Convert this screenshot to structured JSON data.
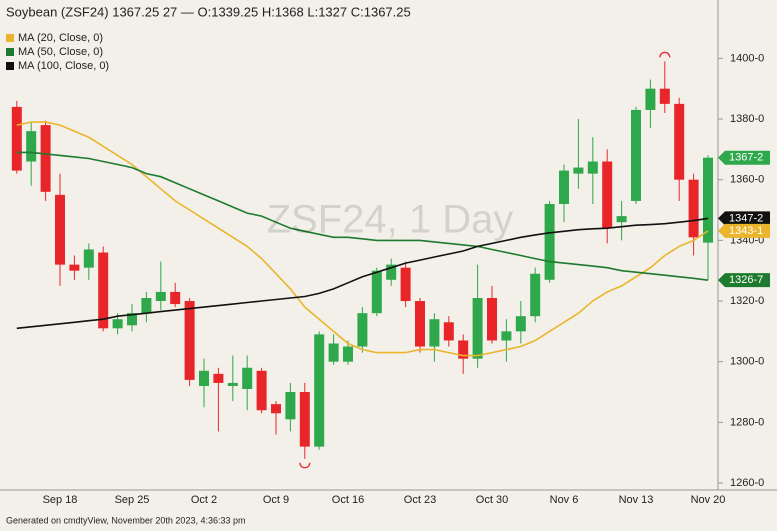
{
  "chart_data": {
    "type": "candlestick",
    "title": "Soybean (ZSF24) 1367.25 27 — O:1339.25 H:1368 L:1327 C:1367.25",
    "watermark": "ZSF24, 1 Day",
    "footer": "Generated on cmdtyView, November 20th 2023, 4:36:33 pm",
    "up_color": "#2ea84a",
    "down_color": "#e8262a",
    "categories": [
      null,
      null,
      null,
      "Sep 18",
      null,
      null,
      null,
      null,
      "Sep 25",
      null,
      null,
      null,
      null,
      "Oct 2",
      null,
      null,
      null,
      null,
      "Oct 9",
      null,
      null,
      null,
      null,
      "Oct 16",
      null,
      null,
      null,
      null,
      "Oct 23",
      null,
      null,
      null,
      null,
      "Oct 30",
      null,
      null,
      null,
      null,
      "Nov 6",
      null,
      null,
      null,
      null,
      "Nov 13",
      null,
      null,
      null,
      null,
      "Nov 20"
    ],
    "open": [
      1384,
      1366,
      1378,
      1355,
      1332,
      1331,
      1336,
      1311,
      1312,
      1316,
      1320,
      1323,
      1320,
      1292,
      1296,
      1292,
      1291,
      1297,
      1286,
      1281,
      1290,
      1272,
      1300,
      1300,
      1305,
      1316,
      1327,
      1331,
      1320,
      1305,
      1313,
      1307,
      1301,
      1321,
      1307,
      1310,
      1315,
      1327,
      1352,
      1362,
      1362,
      1366,
      1346,
      1353,
      1383,
      1390,
      1385,
      1360,
      1339.25
    ],
    "high": [
      1386,
      1379,
      1379.5,
      1362,
      1335,
      1339,
      1338,
      1316,
      1319,
      1323,
      1333,
      1326,
      1321,
      1301,
      1298,
      1302,
      1302,
      1298,
      1287,
      1293,
      1293,
      1310,
      1309,
      1307,
      1318,
      1331,
      1334,
      1333,
      1321,
      1316,
      1315,
      1309,
      1332,
      1325,
      1314,
      1320,
      1331,
      1353,
      1365,
      1380,
      1374,
      1370,
      1353,
      1384,
      1393,
      1399,
      1387,
      1362,
      1368
    ],
    "low": [
      1362,
      1358,
      1353,
      1325,
      1327,
      1327,
      1310,
      1309,
      1310,
      1313,
      1317,
      1318,
      1292,
      1285,
      1277,
      1287,
      1284,
      1283,
      1276,
      1277,
      1268,
      1271,
      1299,
      1299,
      1303,
      1315,
      1325,
      1318,
      1303,
      1300,
      1305,
      1296,
      1298,
      1306,
      1300,
      1306,
      1313,
      1326,
      1346,
      1357,
      1352,
      1339,
      1340,
      1352,
      1377,
      1382,
      1353,
      1335,
      1327
    ],
    "close": [
      1363,
      1376,
      1356,
      1332,
      1330,
      1337,
      1311,
      1314,
      1316,
      1321,
      1323,
      1319,
      1294,
      1297,
      1293,
      1293,
      1298,
      1284,
      1283,
      1290,
      1272,
      1309,
      1306,
      1305,
      1316,
      1330,
      1332,
      1320,
      1305,
      1314,
      1307,
      1301,
      1321,
      1307,
      1310,
      1315,
      1329,
      1352,
      1363,
      1364,
      1366,
      1344,
      1348,
      1383,
      1390,
      1385,
      1360,
      1341,
      1367.25
    ],
    "series": [
      {
        "name": "MA (20, Close, 0)",
        "color": "#eab52a",
        "values": [
          1378,
          1379,
          1379,
          1378,
          1376,
          1374,
          1371,
          1368,
          1365,
          1361,
          1357,
          1353,
          1350,
          1347,
          1344,
          1341,
          1338,
          1334,
          1329,
          1324,
          1318,
          1314,
          1310,
          1306,
          1304,
          1303,
          1303,
          1303,
          1304,
          1304,
          1303,
          1302,
          1302,
          1303,
          1304,
          1305,
          1307,
          1310,
          1313,
          1316,
          1320,
          1323,
          1325,
          1328,
          1331,
          1335,
          1338,
          1340,
          1343.125
        ]
      },
      {
        "name": "MA (50, Close, 0)",
        "color": "#1e7a2e",
        "values": [
          1369,
          1369,
          1368.5,
          1368,
          1367.5,
          1367,
          1366,
          1365,
          1364,
          1362,
          1361,
          1359,
          1357,
          1355,
          1353,
          1351,
          1349,
          1348,
          1346,
          1344,
          1343,
          1342,
          1341,
          1341,
          1340.5,
          1340,
          1340,
          1340,
          1340,
          1339.5,
          1339,
          1338.5,
          1338,
          1337,
          1336,
          1335,
          1334,
          1333,
          1332.5,
          1332,
          1331.5,
          1331,
          1330,
          1329.5,
          1329,
          1328.5,
          1328,
          1327.5,
          1326.875
        ]
      },
      {
        "name": "MA (100, Close, 0)",
        "color": "#111111",
        "values": [
          1311,
          1311.5,
          1312,
          1312.5,
          1313,
          1313.5,
          1314,
          1315,
          1315.5,
          1316,
          1316.5,
          1317,
          1317.5,
          1318,
          1318.5,
          1319,
          1319.5,
          1320,
          1320.5,
          1321,
          1321.5,
          1322.5,
          1324,
          1326,
          1328,
          1329.5,
          1331,
          1332.5,
          1333.5,
          1334.5,
          1335.5,
          1336.5,
          1338,
          1339,
          1340,
          1341,
          1341.8,
          1342.5,
          1343,
          1343.5,
          1343.8,
          1344,
          1344.5,
          1345,
          1345.2,
          1345.5,
          1346,
          1346.5,
          1347.25
        ]
      }
    ],
    "price_labels": [
      {
        "value": 1367.25,
        "label": "1367-2",
        "color": "#2ea84a"
      },
      {
        "value": 1347.25,
        "label": "1347-2",
        "color": "#111111"
      },
      {
        "value": 1343.125,
        "label": "1343-1",
        "color": "#eab52a"
      },
      {
        "value": 1326.875,
        "label": "1326-7",
        "color": "#1e7a2e"
      }
    ],
    "ylim": [
      1257.7,
      1411
    ],
    "yticks": [
      {
        "value": 1260,
        "label": "1260-0"
      },
      {
        "value": 1280,
        "label": "1280-0"
      },
      {
        "value": 1300,
        "label": "1300-0"
      },
      {
        "value": 1320,
        "label": "1320-0"
      },
      {
        "value": 1340,
        "label": "1340-0"
      },
      {
        "value": 1360,
        "label": "1360-0"
      },
      {
        "value": 1380,
        "label": "1380-0"
      },
      {
        "value": 1400,
        "label": "1400-0"
      }
    ]
  }
}
